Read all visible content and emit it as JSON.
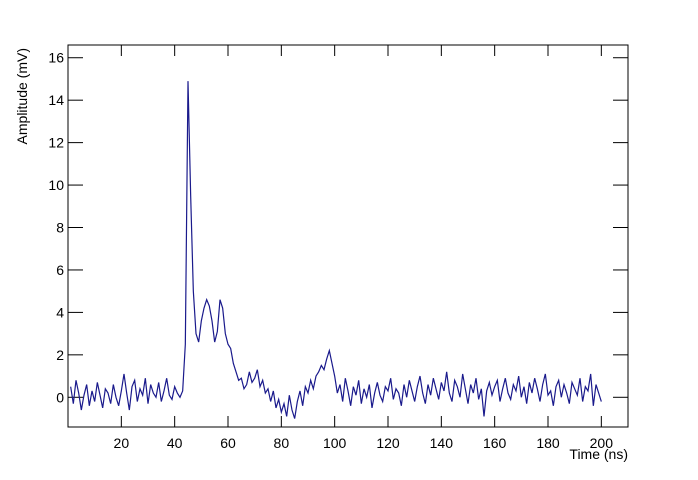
{
  "chart_data": {
    "type": "line",
    "x_label": "Time (ns)",
    "y_label": "Amplitude (mV)",
    "x": [
      1,
      2,
      3,
      4,
      5,
      6,
      7,
      8,
      9,
      10,
      11,
      12,
      13,
      14,
      15,
      16,
      17,
      18,
      19,
      20,
      21,
      22,
      23,
      24,
      25,
      26,
      27,
      28,
      29,
      30,
      31,
      32,
      33,
      34,
      35,
      36,
      37,
      38,
      39,
      40,
      41,
      42,
      43,
      44,
      45,
      46,
      47,
      48,
      49,
      50,
      51,
      52,
      53,
      54,
      55,
      56,
      57,
      58,
      59,
      60,
      61,
      62,
      63,
      64,
      65,
      66,
      67,
      68,
      69,
      70,
      71,
      72,
      73,
      74,
      75,
      76,
      77,
      78,
      79,
      80,
      81,
      82,
      83,
      84,
      85,
      86,
      87,
      88,
      89,
      90,
      91,
      92,
      93,
      94,
      95,
      96,
      97,
      98,
      99,
      100,
      101,
      102,
      103,
      104,
      105,
      106,
      107,
      108,
      109,
      110,
      111,
      112,
      113,
      114,
      115,
      116,
      117,
      118,
      119,
      120,
      121,
      122,
      123,
      124,
      125,
      126,
      127,
      128,
      129,
      130,
      131,
      132,
      133,
      134,
      135,
      136,
      137,
      138,
      139,
      140,
      141,
      142,
      143,
      144,
      145,
      146,
      147,
      148,
      149,
      150,
      151,
      152,
      153,
      154,
      155,
      156,
      157,
      158,
      159,
      160,
      161,
      162,
      163,
      164,
      165,
      166,
      167,
      168,
      169,
      170,
      171,
      172,
      173,
      174,
      175,
      176,
      177,
      178,
      179,
      180,
      181,
      182,
      183,
      184,
      185,
      186,
      187,
      188,
      189,
      190,
      191,
      192,
      193,
      194,
      195,
      196,
      197,
      198,
      199,
      200
    ],
    "series": [
      {
        "color": "#1a1a8c",
        "values": [
          0.5,
          -0.3,
          0.8,
          0.2,
          -0.6,
          0.1,
          0.6,
          -0.4,
          0.3,
          -0.2,
          0.7,
          0.1,
          -0.5,
          0.4,
          0.2,
          -0.3,
          0.6,
          0.0,
          -0.4,
          0.3,
          1.1,
          0.2,
          -0.6,
          0.5,
          0.8,
          -0.2,
          0.4,
          0.1,
          0.9,
          -0.3,
          0.6,
          0.2,
          0.0,
          0.7,
          -0.2,
          0.3,
          0.9,
          0.1,
          -0.1,
          0.5,
          0.2,
          0.0,
          0.3,
          2.5,
          14.9,
          9.5,
          5.0,
          3.0,
          2.6,
          3.6,
          4.2,
          4.6,
          4.3,
          3.6,
          2.6,
          3.1,
          4.6,
          4.2,
          3.0,
          2.5,
          2.3,
          1.6,
          1.2,
          0.8,
          0.9,
          0.4,
          0.6,
          1.2,
          0.7,
          0.9,
          1.3,
          0.5,
          0.8,
          0.2,
          0.4,
          -0.2,
          0.3,
          -0.5,
          -0.1,
          -0.7,
          -0.3,
          -0.9,
          0.1,
          -0.6,
          -1.0,
          -0.2,
          0.3,
          -0.4,
          0.5,
          0.2,
          0.8,
          0.4,
          1.0,
          1.2,
          1.5,
          1.3,
          1.8,
          2.2,
          1.6,
          1.0,
          0.2,
          0.6,
          -0.2,
          0.9,
          0.3,
          -0.4,
          0.5,
          0.1,
          0.8,
          -0.3,
          0.4,
          0.0,
          0.6,
          -0.5,
          0.2,
          0.7,
          0.1,
          -0.2,
          0.5,
          0.3,
          0.9,
          -0.1,
          0.4,
          0.2,
          -0.4,
          0.6,
          0.0,
          0.8,
          0.3,
          -0.2,
          0.5,
          1.0,
          0.2,
          -0.3,
          0.6,
          0.1,
          0.9,
          0.4,
          -0.1,
          0.7,
          0.3,
          1.2,
          0.2,
          -0.2,
          0.8,
          0.5,
          0.0,
          1.1,
          0.4,
          -0.3,
          0.6,
          0.2,
          0.9,
          -0.1,
          0.4,
          -0.9,
          0.3,
          0.7,
          0.1,
          0.5,
          0.8,
          -0.2,
          0.4,
          0.9,
          0.2,
          -0.1,
          0.6,
          0.3,
          1.0,
          0.0,
          0.5,
          -0.3,
          0.7,
          0.2,
          0.9,
          0.4,
          -0.2,
          0.6,
          1.1,
          0.1,
          0.3,
          -0.4,
          0.5,
          0.8,
          0.0,
          0.6,
          0.2,
          -0.3,
          0.7,
          0.4,
          0.1,
          0.9,
          -0.2,
          0.5,
          0.3,
          1.1,
          -0.4,
          0.6,
          0.2,
          -0.2
        ]
      }
    ],
    "xlim": [
      0,
      210
    ],
    "xticks": [
      20,
      40,
      60,
      80,
      100,
      120,
      140,
      160,
      180,
      200
    ],
    "ylim": [
      -1.4,
      16.6
    ],
    "yticks": [
      0,
      2,
      4,
      6,
      8,
      10,
      12,
      14,
      16
    ]
  }
}
